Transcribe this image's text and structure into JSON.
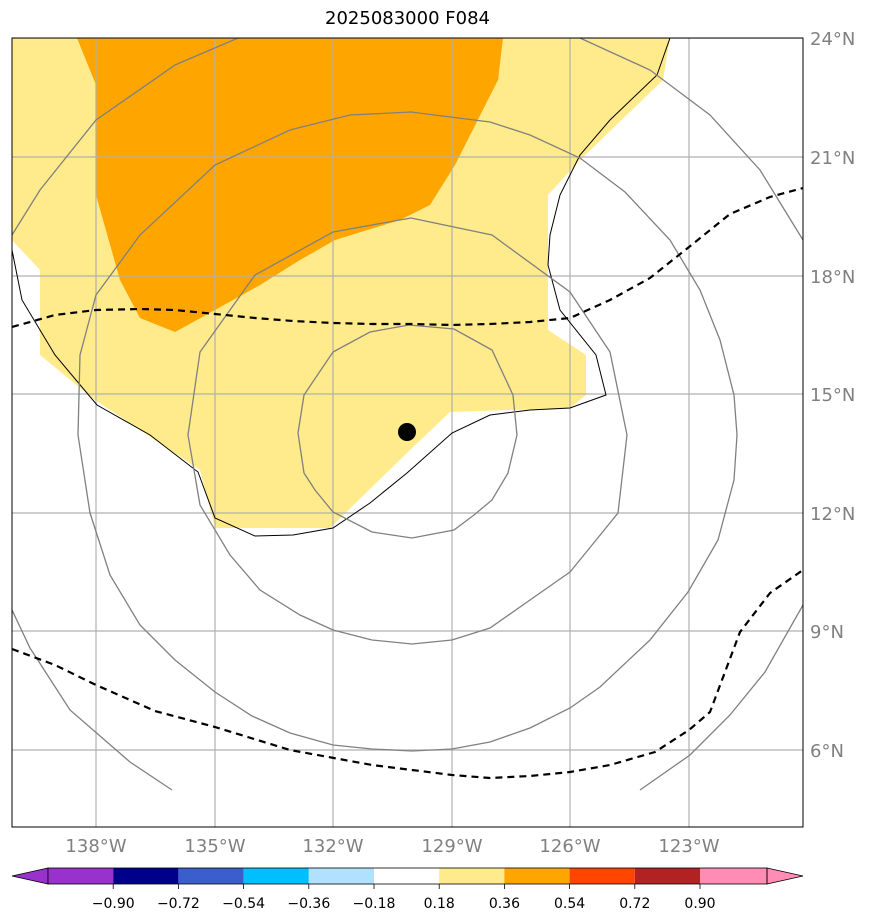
{
  "title": "2025083000 F084",
  "map": {
    "lon_range": [
      -140,
      -120
    ],
    "lat_range": [
      4,
      24
    ],
    "lon_ticks": [
      "138°W",
      "135°W",
      "132°W",
      "129°W",
      "126°W",
      "123°W"
    ],
    "lat_ticks": [
      "24°N",
      "21°N",
      "18°N",
      "15°N",
      "12°N",
      "9°N",
      "6°N"
    ],
    "storm_center": {
      "lon": -130.1,
      "lat": 14.05
    },
    "range_rings_deg": [
      2,
      5,
      8,
      10
    ],
    "fill_colors": {
      "light_yellow": "#ffea8c",
      "orange": "#ffa500"
    },
    "contour_color": "#000000",
    "ring_color": "#808080",
    "grid_color": "#b0b0b0"
  },
  "colorbar": {
    "tick_labels": [
      "−0.90",
      "−0.72",
      "−0.54",
      "−0.36",
      "−0.18",
      "0.18",
      "0.36",
      "0.54",
      "0.72",
      "0.90"
    ],
    "colors": [
      "#9932cc",
      "#00008b",
      "#3a5fcd",
      "#00bfff",
      "#b0e2ff",
      "#ffffff",
      "#ffea8c",
      "#ffa500",
      "#ff4500",
      "#b22222",
      "#ff8cb4"
    ]
  }
}
